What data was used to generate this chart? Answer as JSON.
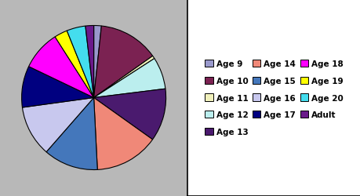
{
  "labels": [
    "Age 9",
    "Age 10",
    "Age 11",
    "Age 12",
    "Age 13",
    "Age 14",
    "Age 15",
    "Age 16",
    "Age 17",
    "Age 18",
    "Age 19",
    "Age 20",
    "Adult"
  ],
  "sizes": [
    2.0,
    16.0,
    0.8,
    8.5,
    14.0,
    17.0,
    14.5,
    13.5,
    11.0,
    10.5,
    3.5,
    5.0,
    2.2
  ],
  "colors": [
    "#9999cc",
    "#7b2252",
    "#f0f0bb",
    "#bbeeee",
    "#4a1a6e",
    "#f08878",
    "#4477bb",
    "#c8c8ee",
    "#000080",
    "#ff00ff",
    "#ffff00",
    "#44ddee",
    "#6a1a8a"
  ],
  "startangle": 90,
  "background_color": "#b8b8b8",
  "legend_order": [
    "Age 9",
    "Age 10",
    "Age 11",
    "Age 12",
    "Age 13",
    "Age 14",
    "Age 15",
    "Age 16",
    "Age 17",
    "Age 18",
    "Age 19",
    "Age 20",
    "Adult"
  ]
}
